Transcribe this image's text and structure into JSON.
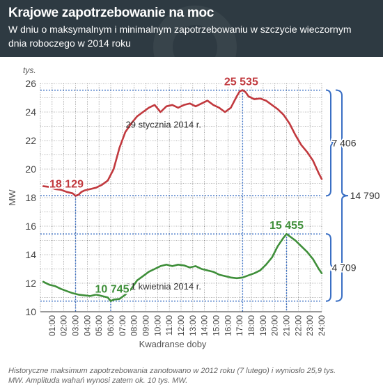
{
  "header": {
    "title": "Krajowe zapotrzebowanie na moc",
    "subtitle_line1": "W dniu o maksymalnym i minimalnym zapotrzebowaniu w szczycie wieczornym",
    "subtitle_line2": "dnia roboczego w 2014 roku"
  },
  "footnote": {
    "line1": "Historyczne maksimum zapotrzebowania zanotowano w 2012 roku (7 lutego) i wyniosło 25,9 tys.",
    "line2": "MW. Amplituda wahań wynosi zatem ok. 10 tys. MW."
  },
  "chart_data": {
    "type": "line",
    "xlabel": "Kwadranse doby",
    "ylabel": "MW",
    "yunit": "tys.",
    "ylim": [
      10,
      26
    ],
    "y_ticks": [
      10,
      12,
      14,
      16,
      18,
      20,
      22,
      24,
      26
    ],
    "x_ticks": [
      "01:00",
      "02:00",
      "03:00",
      "04:00",
      "05:00",
      "06:00",
      "07:00",
      "08:00",
      "09:00",
      "10:00",
      "11:00",
      "12:00",
      "13:00",
      "14:00",
      "15:00",
      "16:00",
      "17:00",
      "18:00",
      "19:00",
      "20:00",
      "21:00",
      "22:00",
      "23:00",
      "24:00"
    ],
    "grid": true,
    "colors": {
      "winter": "#c1393e",
      "spring": "#3f8f3a",
      "marker": "#3a6fc4",
      "grid": "#444444",
      "header": "#2e3a42"
    },
    "series": [
      {
        "name": "29 stycznia 2014 r.",
        "x_hours": [
          0.25,
          0.75,
          1.25,
          1.75,
          2.25,
          2.75,
          3.0,
          3.25,
          3.5,
          3.75,
          4.25,
          4.75,
          5.25,
          5.75,
          6.25,
          6.75,
          7.25,
          7.75,
          8.25,
          8.75,
          9.25,
          9.75,
          10.25,
          10.75,
          11.25,
          11.75,
          12.25,
          12.75,
          13.25,
          13.75,
          14.25,
          14.75,
          15.25,
          15.75,
          16.25,
          16.75,
          17.0,
          17.25,
          17.5,
          17.75,
          18.25,
          18.75,
          19.25,
          19.75,
          20.25,
          20.75,
          21.25,
          21.75,
          22.25,
          22.75,
          23.25,
          23.75,
          24.0
        ],
        "values": [
          18.8,
          18.75,
          18.6,
          18.55,
          18.4,
          18.3,
          18.129,
          18.2,
          18.4,
          18.5,
          18.6,
          18.7,
          18.9,
          19.2,
          20.0,
          21.5,
          22.6,
          23.2,
          23.7,
          24.0,
          24.3,
          24.5,
          24.0,
          24.4,
          24.5,
          24.3,
          24.5,
          24.6,
          24.4,
          24.6,
          24.8,
          24.5,
          24.3,
          24.0,
          24.3,
          25.1,
          25.45,
          25.535,
          25.4,
          25.1,
          24.9,
          24.95,
          24.8,
          24.5,
          24.2,
          23.8,
          23.2,
          22.4,
          21.7,
          21.2,
          20.6,
          19.7,
          19.3
        ]
      },
      {
        "name": "21 kwietnia 2014 r.",
        "x_hours": [
          0.25,
          0.75,
          1.25,
          1.75,
          2.25,
          2.75,
          3.25,
          3.75,
          4.25,
          4.75,
          5.25,
          5.75,
          6.0,
          6.25,
          6.75,
          7.25,
          7.75,
          8.25,
          8.75,
          9.25,
          9.75,
          10.25,
          10.75,
          11.25,
          11.75,
          12.25,
          12.75,
          13.25,
          13.75,
          14.25,
          14.75,
          15.25,
          15.75,
          16.25,
          16.75,
          17.25,
          17.75,
          18.25,
          18.75,
          19.25,
          19.75,
          20.25,
          20.75,
          21.0,
          21.25,
          21.75,
          22.25,
          22.75,
          23.25,
          23.75,
          24.0
        ],
        "values": [
          12.1,
          11.9,
          11.8,
          11.6,
          11.45,
          11.3,
          11.2,
          11.15,
          11.1,
          11.2,
          11.1,
          11.0,
          10.745,
          10.85,
          10.9,
          11.2,
          11.6,
          12.2,
          12.5,
          12.8,
          13.0,
          13.2,
          13.3,
          13.2,
          13.3,
          13.25,
          13.1,
          13.2,
          13.0,
          12.9,
          12.8,
          12.6,
          12.5,
          12.4,
          12.35,
          12.4,
          12.55,
          12.7,
          12.9,
          13.3,
          13.8,
          14.6,
          15.2,
          15.455,
          15.3,
          15.0,
          14.6,
          14.2,
          13.7,
          13.0,
          12.7
        ]
      }
    ],
    "annotations": {
      "winter_max": {
        "label": "25 535",
        "x_hours": 17.25,
        "value": 25.535
      },
      "winter_min": {
        "label": "18 129",
        "x_hours": 3.0,
        "value": 18.129
      },
      "spring_max": {
        "label": "15 455",
        "x_hours": 21.0,
        "value": 15.455
      },
      "spring_min": {
        "label": "10 745",
        "x_hours": 6.0,
        "value": 10.745
      },
      "winter_range": "7 406",
      "spring_range": "4 709",
      "total_range": "14 790"
    }
  }
}
